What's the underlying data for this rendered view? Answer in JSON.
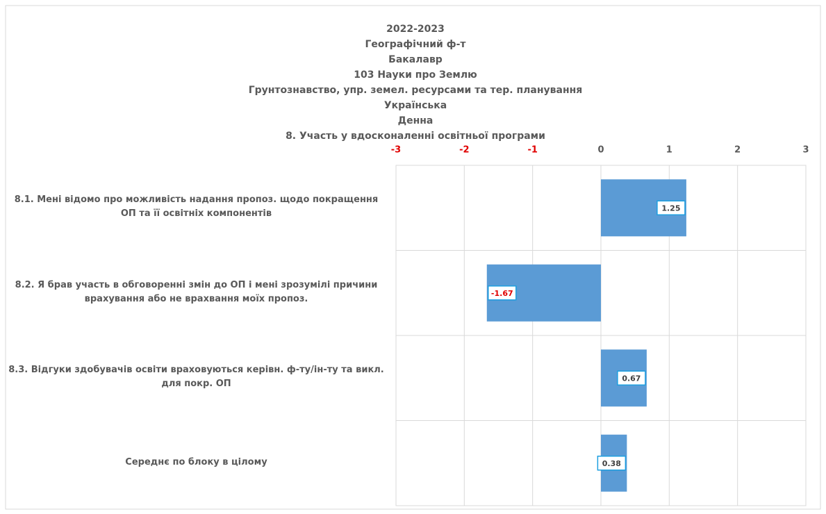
{
  "chart_data": {
    "type": "hbar",
    "title": [
      "2022-2023",
      "Географічний ф-т",
      "Бакалавр",
      "103 Науки про Землю",
      "Грунтознавство, упр. земел. ресурсами та тер. планування",
      "Українська",
      "Денна",
      "8. Участь у вдосконаленні освітньої програми"
    ],
    "categories": [
      "8.1. Мені відомо про можливість надання пропоз. щодо покращення ОП та її освітніх компонентів",
      "8.2. Я брав участь в обговоренні змін до ОП і мені зрозумілі причини врахування або не врахвання моїх пропоз.",
      "8.3. Відгуки здобувачів освіти враховуються керівн. ф-ту/ін-ту та викл. для покр. ОП",
      "Середнє по блоку в цілому"
    ],
    "values": [
      1.25,
      -1.67,
      0.67,
      0.38
    ],
    "color": "#5b9bd5",
    "negative_label_color": "#e00000",
    "xlim": [
      -3,
      3
    ],
    "xticks": [
      -3,
      -2,
      -1,
      0,
      1,
      2,
      3
    ],
    "grid": true
  }
}
